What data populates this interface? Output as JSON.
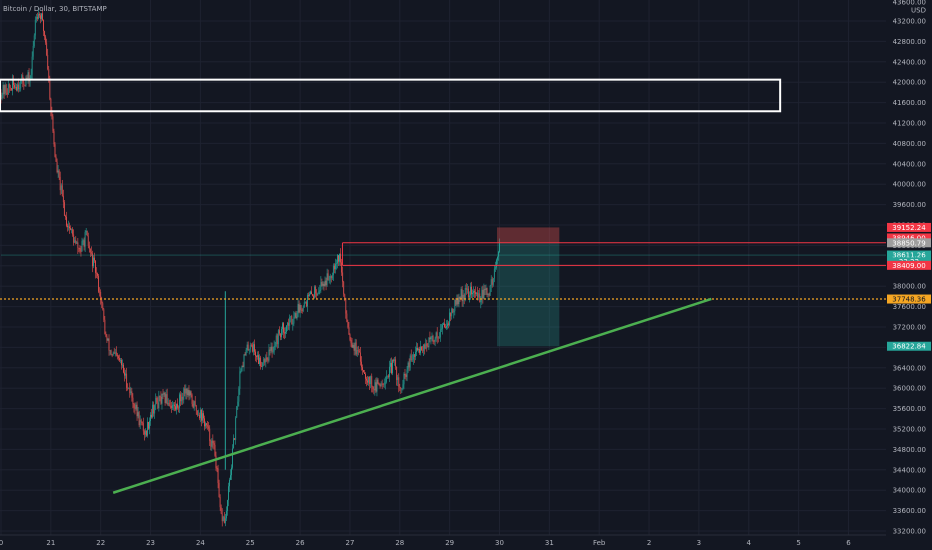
{
  "header": {
    "title": "Bitcoin / Dollar, 30, BITSTAMP"
  },
  "currency_label": "USD",
  "colors": {
    "background": "#131722",
    "grid": "#1e2230",
    "up": "#26a69a",
    "down": "#ef5350",
    "trendline": "#4caf50",
    "zone": "#ffffff",
    "level": "#f23645",
    "entry": "#f5a623"
  },
  "chart_data": {
    "type": "candlestick",
    "y_range": [
      33200,
      43700
    ],
    "y_ticks": [
      33200,
      33600,
      34000,
      34400,
      34800,
      35200,
      35600,
      36000,
      36400,
      36800,
      37200,
      37600,
      38000,
      38400,
      38800,
      39200,
      39600,
      40000,
      40400,
      40800,
      41200,
      41600,
      42000,
      42400,
      42800,
      43200
    ],
    "y_tick_labels": [
      "33200.00",
      "33600.00",
      "34000.00",
      "34400.00",
      "34800.00",
      "35200.00",
      "35600.00",
      "36000.00",
      "36400.00",
      "36800.00",
      "37200.00",
      "37600.00",
      "38000.00",
      "38400.00",
      "38800.00",
      "39200.00",
      "39600.00",
      "40000.00",
      "40400.00",
      "40800.00",
      "41200.00",
      "41600.00",
      "42000.00",
      "42400.00",
      "42800.00",
      "43200.00"
    ],
    "x_range": [
      20.0,
      7.3
    ],
    "x_ticks": [
      {
        "label": "0",
        "day": 20.0
      },
      {
        "label": "21",
        "day": 21.0
      },
      {
        "label": "22",
        "day": 22.0
      },
      {
        "label": "23",
        "day": 23.0
      },
      {
        "label": "24",
        "day": 24.0
      },
      {
        "label": "25",
        "day": 25.0
      },
      {
        "label": "26",
        "day": 26.0
      },
      {
        "label": "27",
        "day": 27.0
      },
      {
        "label": "28",
        "day": 28.0
      },
      {
        "label": "29",
        "day": 29.0
      },
      {
        "label": "30",
        "day": 30.0
      },
      {
        "label": "31",
        "day": 31.0
      },
      {
        "label": "Feb",
        "day": 32.0
      },
      {
        "label": "2",
        "day": 33.0
      },
      {
        "label": "3",
        "day": 34.0
      },
      {
        "label": "4",
        "day": 35.0
      },
      {
        "label": "5",
        "day": 36.0
      },
      {
        "label": "6",
        "day": 37.0
      }
    ],
    "price_path": [
      [
        20.0,
        41800
      ],
      [
        20.2,
        41900
      ],
      [
        20.4,
        42000
      ],
      [
        20.6,
        42100
      ],
      [
        20.7,
        43400
      ],
      [
        20.8,
        43300
      ],
      [
        20.9,
        42800
      ],
      [
        21.0,
        41500
      ],
      [
        21.1,
        40400
      ],
      [
        21.2,
        39900
      ],
      [
        21.3,
        39300
      ],
      [
        21.4,
        39100
      ],
      [
        21.5,
        38800
      ],
      [
        21.6,
        38700
      ],
      [
        21.7,
        39000
      ],
      [
        21.8,
        38600
      ],
      [
        21.9,
        38300
      ],
      [
        22.0,
        37800
      ],
      [
        22.1,
        37000
      ],
      [
        22.2,
        36700
      ],
      [
        22.4,
        36500
      ],
      [
        22.5,
        36200
      ],
      [
        22.6,
        35900
      ],
      [
        22.7,
        35600
      ],
      [
        22.8,
        35300
      ],
      [
        22.9,
        35100
      ],
      [
        23.0,
        35500
      ],
      [
        23.1,
        35700
      ],
      [
        23.3,
        35800
      ],
      [
        23.5,
        35600
      ],
      [
        23.7,
        36000
      ],
      [
        23.9,
        35600
      ],
      [
        24.0,
        35500
      ],
      [
        24.1,
        35300
      ],
      [
        24.2,
        35000
      ],
      [
        24.3,
        34700
      ],
      [
        24.4,
        33500
      ],
      [
        24.5,
        33400
      ],
      [
        24.6,
        34300
      ],
      [
        24.7,
        35200
      ],
      [
        24.8,
        36400
      ],
      [
        25.0,
        36900
      ],
      [
        25.2,
        36500
      ],
      [
        25.4,
        36700
      ],
      [
        25.6,
        37100
      ],
      [
        25.8,
        37300
      ],
      [
        26.0,
        37600
      ],
      [
        26.2,
        37800
      ],
      [
        26.4,
        38000
      ],
      [
        26.6,
        38200
      ],
      [
        26.7,
        38500
      ],
      [
        26.8,
        38600
      ],
      [
        26.9,
        37600
      ],
      [
        27.0,
        37000
      ],
      [
        27.1,
        36800
      ],
      [
        27.3,
        36300
      ],
      [
        27.5,
        36000
      ],
      [
        27.7,
        36200
      ],
      [
        27.9,
        36500
      ],
      [
        28.0,
        35900
      ],
      [
        28.2,
        36500
      ],
      [
        28.4,
        36800
      ],
      [
        28.6,
        36900
      ],
      [
        28.8,
        37100
      ],
      [
        29.0,
        37400
      ],
      [
        29.2,
        37800
      ],
      [
        29.4,
        37900
      ],
      [
        29.6,
        37800
      ],
      [
        29.8,
        37900
      ],
      [
        29.9,
        38300
      ],
      [
        30.0,
        38750
      ]
    ],
    "zone_box": {
      "day_start": 20.0,
      "day_end": 35.65,
      "price_top": 42050,
      "price_bottom": 41430
    },
    "trendline": {
      "day_start": 22.25,
      "price_start": 33950,
      "day_end": 34.25,
      "price_end": 37750
    },
    "horizontal_levels": [
      {
        "price": 38850.79,
        "day_start": 26.85
      },
      {
        "price": 38409.0,
        "day_start": 26.85
      }
    ],
    "reference_line": {
      "price": 38611.26,
      "day_start": 20.0
    },
    "entry_line": {
      "price": 37748.36
    },
    "vertical_marker": {
      "day": 24.5,
      "price_top": 37900,
      "price_bottom": 34400
    },
    "short_position": {
      "day_start": 29.95,
      "day_end": 31.2,
      "stop": 39152.24,
      "entry": 38850.79,
      "target": 36822.84
    },
    "price_tags": [
      {
        "value": "39152.24",
        "price": 39152.24,
        "color": "#f23645"
      },
      {
        "value": "38946.00",
        "price": 38946.0,
        "color": "#f23645"
      },
      {
        "value": "38850.79",
        "price": 38850.79,
        "color": "#9e9e9e"
      },
      {
        "value": "38611.26",
        "price": 38611.26,
        "color": "#26a69a"
      },
      {
        "value": "23:22",
        "price": 38480,
        "color": "#26a69a"
      },
      {
        "value": "38409.00",
        "price": 38409.0,
        "color": "#f23645"
      },
      {
        "value": "37748.36",
        "price": 37748.36,
        "color": "#f5a623",
        "dark_text": true
      },
      {
        "value": "36822.84",
        "price": 36822.84,
        "color": "#26a69a"
      }
    ]
  }
}
